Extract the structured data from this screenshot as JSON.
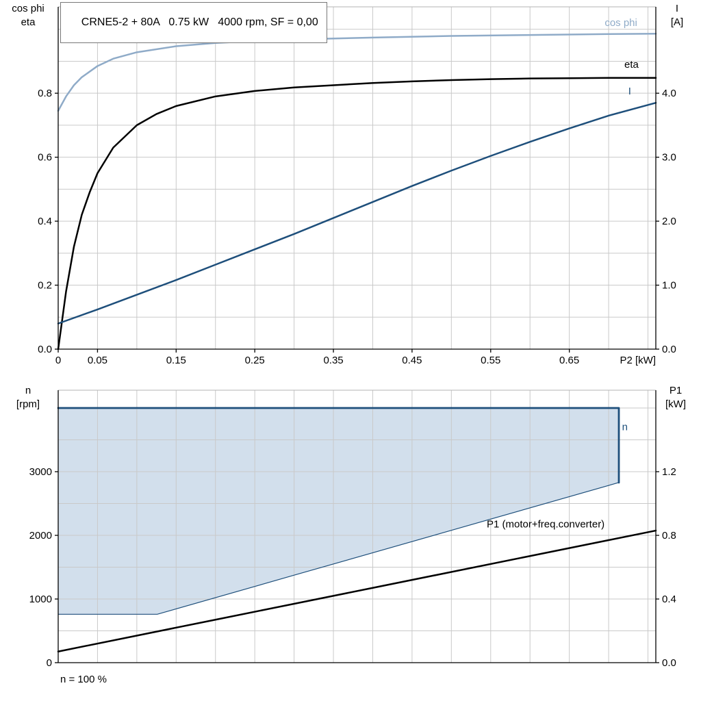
{
  "chart_data": [
    {
      "type": "line",
      "title": "CRNE5-2 + 80A   0.75 kW   4000 rpm, SF = 0,00",
      "xlabel": "P2 [kW]",
      "xlim": [
        0,
        0.76
      ],
      "x_grid_step": 0.05,
      "grid_color": "#c9c9c9",
      "frame_top_color": "#b3b3b3",
      "x_ticks": [
        {
          "v": 0,
          "label": "0"
        },
        {
          "v": 0.05,
          "label": "0.05"
        },
        {
          "v": 0.15,
          "label": "0.15"
        },
        {
          "v": 0.25,
          "label": "0.25"
        },
        {
          "v": 0.35,
          "label": "0.35"
        },
        {
          "v": 0.45,
          "label": "0.45"
        },
        {
          "v": 0.55,
          "label": "0.55"
        },
        {
          "v": 0.65,
          "label": "0.65"
        }
      ],
      "left_axis": {
        "title_lines": [
          "cos phi",
          "eta"
        ],
        "lim": [
          0,
          1.07
        ],
        "grid_step": 0.1,
        "ticks": [
          {
            "v": 0,
            "label": "0.0"
          },
          {
            "v": 0.2,
            "label": "0.2"
          },
          {
            "v": 0.4,
            "label": "0.4"
          },
          {
            "v": 0.6,
            "label": "0.6"
          },
          {
            "v": 0.8,
            "label": "0.8"
          }
        ]
      },
      "right_axis": {
        "title_lines": [
          "I",
          "[A]"
        ],
        "lim": [
          0,
          5.35
        ],
        "ticks": [
          {
            "v": 0,
            "label": "0.0"
          },
          {
            "v": 1,
            "label": "1.0"
          },
          {
            "v": 2,
            "label": "2.0"
          },
          {
            "v": 3,
            "label": "3.0"
          },
          {
            "v": 4,
            "label": "4.0"
          }
        ]
      },
      "series": [
        {
          "id": "cos-phi",
          "name": "cos phi",
          "axis": "left",
          "color": "#8fabc8",
          "width": 2.5,
          "x": [
            0,
            0.01,
            0.02,
            0.03,
            0.05,
            0.07,
            0.1,
            0.15,
            0.2,
            0.25,
            0.3,
            0.4,
            0.5,
            0.6,
            0.7,
            0.76
          ],
          "y": [
            0.745,
            0.79,
            0.825,
            0.85,
            0.885,
            0.908,
            0.928,
            0.947,
            0.957,
            0.963,
            0.968,
            0.974,
            0.979,
            0.982,
            0.985,
            0.986
          ],
          "label": {
            "text": "cos phi",
            "x": 0.695,
            "y": 1.01
          }
        },
        {
          "id": "eta",
          "name": "eta",
          "axis": "left",
          "color": "#000000",
          "width": 2.5,
          "x": [
            0,
            0.01,
            0.02,
            0.03,
            0.04,
            0.05,
            0.07,
            0.1,
            0.125,
            0.15,
            0.2,
            0.25,
            0.3,
            0.35,
            0.4,
            0.45,
            0.5,
            0.55,
            0.6,
            0.65,
            0.7,
            0.76
          ],
          "y": [
            0,
            0.18,
            0.32,
            0.42,
            0.49,
            0.55,
            0.63,
            0.7,
            0.735,
            0.76,
            0.79,
            0.807,
            0.818,
            0.825,
            0.832,
            0.837,
            0.841,
            0.844,
            0.846,
            0.847,
            0.848,
            0.848
          ],
          "label": {
            "text": "eta",
            "x": 0.72,
            "y": 0.88
          }
        },
        {
          "id": "current",
          "name": "I",
          "axis": "right",
          "color": "#1e4f7b",
          "width": 2.5,
          "x": [
            0,
            0.05,
            0.1,
            0.15,
            0.2,
            0.25,
            0.3,
            0.35,
            0.4,
            0.45,
            0.5,
            0.55,
            0.6,
            0.65,
            0.7,
            0.76
          ],
          "y": [
            0.4,
            0.62,
            0.85,
            1.08,
            1.32,
            1.56,
            1.8,
            2.05,
            2.3,
            2.55,
            2.79,
            3.02,
            3.24,
            3.45,
            3.65,
            3.85
          ],
          "label": {
            "text": "I",
            "x": 0.725,
            "y": 3.98
          }
        }
      ]
    },
    {
      "type": "line",
      "xlim": [
        0,
        0.76
      ],
      "x_grid_step": 0.05,
      "grid_color": "#c9c9c9",
      "frame_top_color": "#b3b3b3",
      "x_ticks": [],
      "left_axis": {
        "title_lines": [
          "n",
          "[rpm]"
        ],
        "lim": [
          0,
          4280
        ],
        "grid_step": 500,
        "ticks": [
          {
            "v": 0,
            "label": "0"
          },
          {
            "v": 1000,
            "label": "1000"
          },
          {
            "v": 2000,
            "label": "2000"
          },
          {
            "v": 3000,
            "label": "3000"
          }
        ]
      },
      "right_axis": {
        "title_lines": [
          "P1",
          "[kW]"
        ],
        "lim": [
          0,
          1.712
        ],
        "ticks": [
          {
            "v": 0,
            "label": "0.0"
          },
          {
            "v": 0.4,
            "label": "0.4"
          },
          {
            "v": 0.8,
            "label": "0.8"
          },
          {
            "v": 1.2,
            "label": "1.2"
          }
        ]
      },
      "region": {
        "fill": "#d2dfec",
        "edge": "#1e4f7b",
        "points": [
          [
            0,
            4000
          ],
          [
            0.713,
            4000
          ],
          [
            0.713,
            2830
          ],
          [
            0.5,
            2079
          ],
          [
            0.3,
            1374
          ],
          [
            0.126,
            760
          ],
          [
            0,
            760
          ]
        ],
        "edge_points": [
          [
            0,
            760
          ],
          [
            0.126,
            760
          ],
          [
            0.3,
            1374
          ],
          [
            0.5,
            2079
          ],
          [
            0.713,
            2830
          ]
        ]
      },
      "series": [
        {
          "id": "n",
          "name": "n",
          "axis": "left",
          "color": "#1e4f7b",
          "width": 2.8,
          "x": [
            0,
            0.713,
            0.713
          ],
          "y": [
            4000,
            4000,
            2830
          ],
          "label": {
            "text": "n",
            "x": 0.717,
            "y": 3650
          }
        },
        {
          "id": "p1",
          "name": "P1 (motor+freq.converter)",
          "axis": "right",
          "color": "#000000",
          "width": 2.5,
          "x": [
            0,
            0.1,
            0.2,
            0.3,
            0.4,
            0.5,
            0.6,
            0.7,
            0.76
          ],
          "y": [
            0.07,
            0.17,
            0.27,
            0.37,
            0.47,
            0.57,
            0.67,
            0.77,
            0.83
          ],
          "label": {
            "text": "P1 (motor+freq.converter)",
            "x": 0.545,
            "y": 0.85
          }
        }
      ],
      "footnote": "n = 100 %"
    }
  ]
}
